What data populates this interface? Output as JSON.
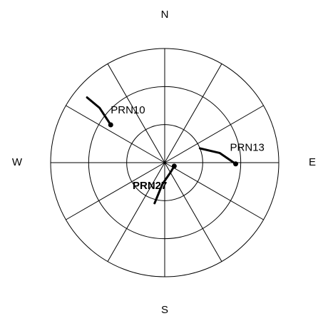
{
  "chart_data": {
    "type": "skyplot",
    "rlim": [
      90,
      0
    ],
    "rticks": [
      0,
      30,
      60
    ],
    "spokes": [
      0,
      30,
      60,
      90,
      120,
      150,
      180,
      210,
      240,
      270,
      300,
      330
    ],
    "azticks": [
      {
        "value": 0,
        "label": "N"
      },
      {
        "value": 90,
        "label": "E"
      },
      {
        "value": 180,
        "label": "S"
      },
      {
        "value": 270,
        "label": "W"
      }
    ],
    "series": [
      {
        "name": "PRN10",
        "color": "#000000",
        "azimuth": [
          310,
          310,
          305
        ],
        "elevation": [
          10,
          23,
          38
        ]
      },
      {
        "name": "PRN13",
        "color": "#000000",
        "azimuth": [
          68,
          80,
          91
        ],
        "elevation": [
          60,
          46,
          34
        ]
      },
      {
        "name": "PRN27",
        "color": "#000000",
        "azimuth": [
          194,
          186,
          150,
          110
        ],
        "elevation": [
          57,
          73,
          81,
          82
        ]
      }
    ]
  }
}
